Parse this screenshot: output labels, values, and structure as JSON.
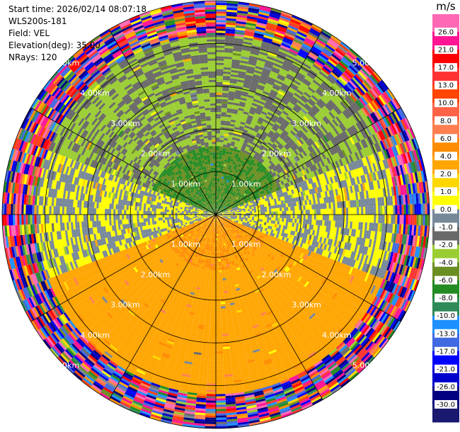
{
  "info": {
    "start_time": "Start time: 2026/02/14 08:07:18",
    "station": "WLS200s-181",
    "field": "Field: VEL",
    "elevation": "Elevation(deg): 35.00",
    "nrays": "NRays: 120"
  },
  "chart_data": {
    "type": "heatmap",
    "projection": "polar-ppi",
    "field": "VEL",
    "units": "m/s",
    "elevation_deg": 35.0,
    "n_rays": 120,
    "max_range_km": 5.0,
    "range_ring_labels": [
      "1.00km",
      "2.00km",
      "3.00km",
      "4.00km",
      "5.00km"
    ],
    "range_rings_km": [
      1,
      2,
      3,
      4,
      5
    ],
    "radial_lines_deg": [
      0,
      30,
      60,
      90,
      120,
      150,
      180,
      210,
      240,
      270,
      300,
      330
    ],
    "velocity_structure": {
      "outer_noise_beyond_km": 4.2,
      "north_sector_m_s": -2.0,
      "north_core_m_s": -6.0,
      "south_sector_m_s": 2.0,
      "south_core_m_s": 4.0,
      "east_west_sector_m_s": 0.0
    },
    "colorbar": {
      "title": "m/s",
      "tick_labels": [
        "26.0",
        "21.0",
        "17.0",
        "13.0",
        "10.0",
        "8.0",
        "6.0",
        "4.0",
        "2.0",
        "1.0",
        "0.0",
        "-1.0",
        "-2.0",
        "-4.0",
        "-6.0",
        "-8.0",
        "-10.0",
        "-13.0",
        "-17.0",
        "-21.0",
        "-26.0",
        "-30.0"
      ],
      "colors": [
        "#ff69b4",
        "#ff1493",
        "#ff0000",
        "#ff3333",
        "#ff4500",
        "#ff6347",
        "#ff7f50",
        "#ff8c00",
        "#ffa500",
        "#ffd700",
        "#ffff00",
        "#778899",
        "#696969",
        "#9acd32",
        "#6b8e23",
        "#228b22",
        "#2e8b57",
        "#1e90ff",
        "#4169e1",
        "#0000ff",
        "#0000cd",
        "#000080",
        "#191970"
      ]
    }
  }
}
